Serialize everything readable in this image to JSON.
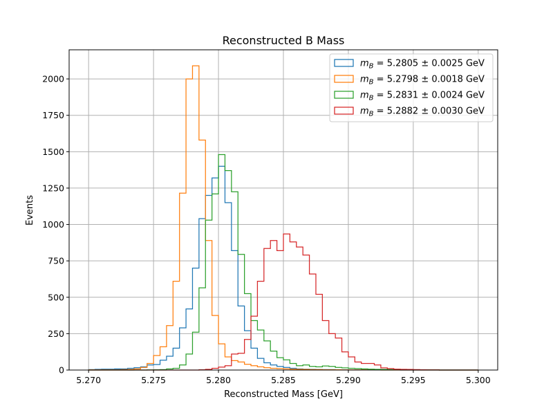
{
  "chart_data": {
    "type": "histogram",
    "title": "Reconstructed B Mass",
    "xlabel": "Reconstructed Mass [GeV]",
    "ylabel": "Events",
    "xlim": [
      5.2685,
      5.3015
    ],
    "ylim": [
      0,
      2200
    ],
    "xticks": [
      5.27,
      5.275,
      5.28,
      5.285,
      5.29,
      5.295,
      5.3
    ],
    "xtick_labels": [
      "5.270",
      "5.275",
      "5.280",
      "5.285",
      "5.290",
      "5.295",
      "5.300"
    ],
    "yticks": [
      0,
      250,
      500,
      750,
      1000,
      1250,
      1500,
      1750,
      2000
    ],
    "ytick_labels": [
      "0",
      "250",
      "500",
      "750",
      "1000",
      "1250",
      "1500",
      "1750",
      "2000"
    ],
    "grid": true,
    "legend_position": "top-right",
    "bin_start": 5.27,
    "bin_width": 0.0005,
    "series": [
      {
        "name": "m_B = 5.2805 ± 0.0025 GeV",
        "label_value": "5.2805 ± 0.0025 GeV",
        "color": "#1f77b4",
        "values": [
          3,
          5,
          6,
          6,
          8,
          8,
          12,
          16,
          22,
          35,
          38,
          68,
          95,
          150,
          290,
          420,
          700,
          1040,
          1200,
          1320,
          1400,
          1150,
          820,
          440,
          270,
          150,
          80,
          50,
          35,
          25,
          18,
          12,
          8,
          6,
          5,
          4,
          3,
          3,
          2,
          2,
          2,
          2,
          1,
          1,
          1,
          1,
          1,
          1,
          0,
          0,
          0,
          0,
          0,
          0,
          0,
          0,
          0,
          0,
          0,
          0
        ]
      },
      {
        "name": "m_B = 5.2798 ± 0.0018 GeV",
        "label_value": "5.2798 ± 0.0018 GeV",
        "color": "#ff7f0e",
        "values": [
          1,
          1,
          2,
          2,
          2,
          3,
          4,
          8,
          18,
          45,
          100,
          160,
          305,
          610,
          1215,
          2000,
          2090,
          1580,
          890,
          375,
          180,
          90,
          65,
          55,
          40,
          30,
          22,
          16,
          12,
          10,
          8,
          6,
          5,
          4,
          3,
          3,
          2,
          2,
          2,
          1,
          1,
          1,
          1,
          1,
          1,
          0,
          0,
          0,
          0,
          0,
          0,
          0,
          0,
          0,
          0,
          0,
          0,
          0,
          0,
          0
        ]
      },
      {
        "name": "m_B = 5.2831 ± 0.0024 GeV",
        "label_value": "5.2831 ± 0.0024 GeV",
        "color": "#2ca02c",
        "values": [
          0,
          0,
          0,
          0,
          0,
          0,
          0,
          0,
          0,
          1,
          2,
          3,
          8,
          12,
          35,
          110,
          260,
          565,
          1030,
          1210,
          1480,
          1370,
          1225,
          795,
          525,
          340,
          275,
          200,
          130,
          85,
          70,
          45,
          30,
          35,
          25,
          22,
          28,
          25,
          18,
          15,
          12,
          10,
          8,
          6,
          5,
          4,
          3,
          3,
          2,
          2,
          1,
          1,
          1,
          1,
          0,
          0,
          0,
          0,
          0,
          0
        ]
      },
      {
        "name": "m_B = 5.2882 ± 0.0030 GeV",
        "label_value": "5.2882 ± 0.0030 GeV",
        "color": "#d62728",
        "values": [
          0,
          0,
          0,
          0,
          0,
          0,
          0,
          0,
          0,
          0,
          0,
          0,
          0,
          0,
          0,
          0,
          0,
          2,
          5,
          12,
          20,
          30,
          110,
          115,
          210,
          370,
          610,
          835,
          890,
          820,
          935,
          880,
          845,
          790,
          660,
          520,
          340,
          250,
          220,
          125,
          90,
          55,
          45,
          45,
          35,
          15,
          10,
          6,
          5,
          4,
          3,
          2,
          1,
          1,
          0,
          0,
          0,
          0,
          0,
          0
        ]
      }
    ]
  }
}
